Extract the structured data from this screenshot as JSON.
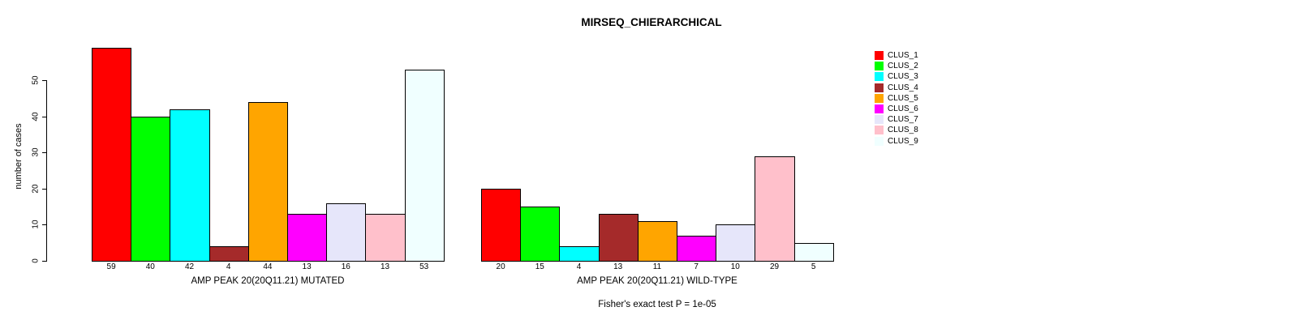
{
  "title": "MIRSEQ_CHIERARCHICAL",
  "footer": "Fisher's exact test P = 1e-05",
  "y_axis": {
    "label": "number of cases",
    "ticks": [
      0,
      10,
      20,
      30,
      40,
      50
    ]
  },
  "legend": {
    "items": [
      {
        "label": "CLUS_1",
        "color": "#FF0000"
      },
      {
        "label": "CLUS_2",
        "color": "#00FF00"
      },
      {
        "label": "CLUS_3",
        "color": "#00FFFF"
      },
      {
        "label": "CLUS_4",
        "color": "#A52A2A"
      },
      {
        "label": "CLUS_5",
        "color": "#FFA500"
      },
      {
        "label": "CLUS_6",
        "color": "#FF00FF"
      },
      {
        "label": "CLUS_7",
        "color": "#E6E6FA"
      },
      {
        "label": "CLUS_8",
        "color": "#FFC0CB"
      },
      {
        "label": "CLUS_9",
        "color": "#F0FFFF"
      }
    ]
  },
  "chart_data": {
    "type": "bar",
    "title": "MIRSEQ_CHIERARCHICAL",
    "ylabel": "number of cases",
    "ylim": [
      0,
      59
    ],
    "grid": false,
    "legend_position": "right",
    "categories": [
      "CLUS_1",
      "CLUS_2",
      "CLUS_3",
      "CLUS_4",
      "CLUS_5",
      "CLUS_6",
      "CLUS_7",
      "CLUS_8",
      "CLUS_9"
    ],
    "colors": [
      "#FF0000",
      "#00FF00",
      "#00FFFF",
      "#A52A2A",
      "#FFA500",
      "#FF00FF",
      "#E6E6FA",
      "#FFC0CB",
      "#F0FFFF"
    ],
    "groups": [
      {
        "name": "mutated",
        "xlabel": "AMP PEAK 20(20Q11.21) MUTATED",
        "values": [
          59,
          40,
          42,
          4,
          44,
          13,
          16,
          13,
          53
        ]
      },
      {
        "name": "wild-type",
        "xlabel": "AMP PEAK 20(20Q11.21) WILD-TYPE",
        "values": [
          20,
          15,
          4,
          13,
          11,
          7,
          10,
          29,
          5
        ]
      }
    ],
    "annotation": "Fisher's exact test P = 1e-05"
  }
}
